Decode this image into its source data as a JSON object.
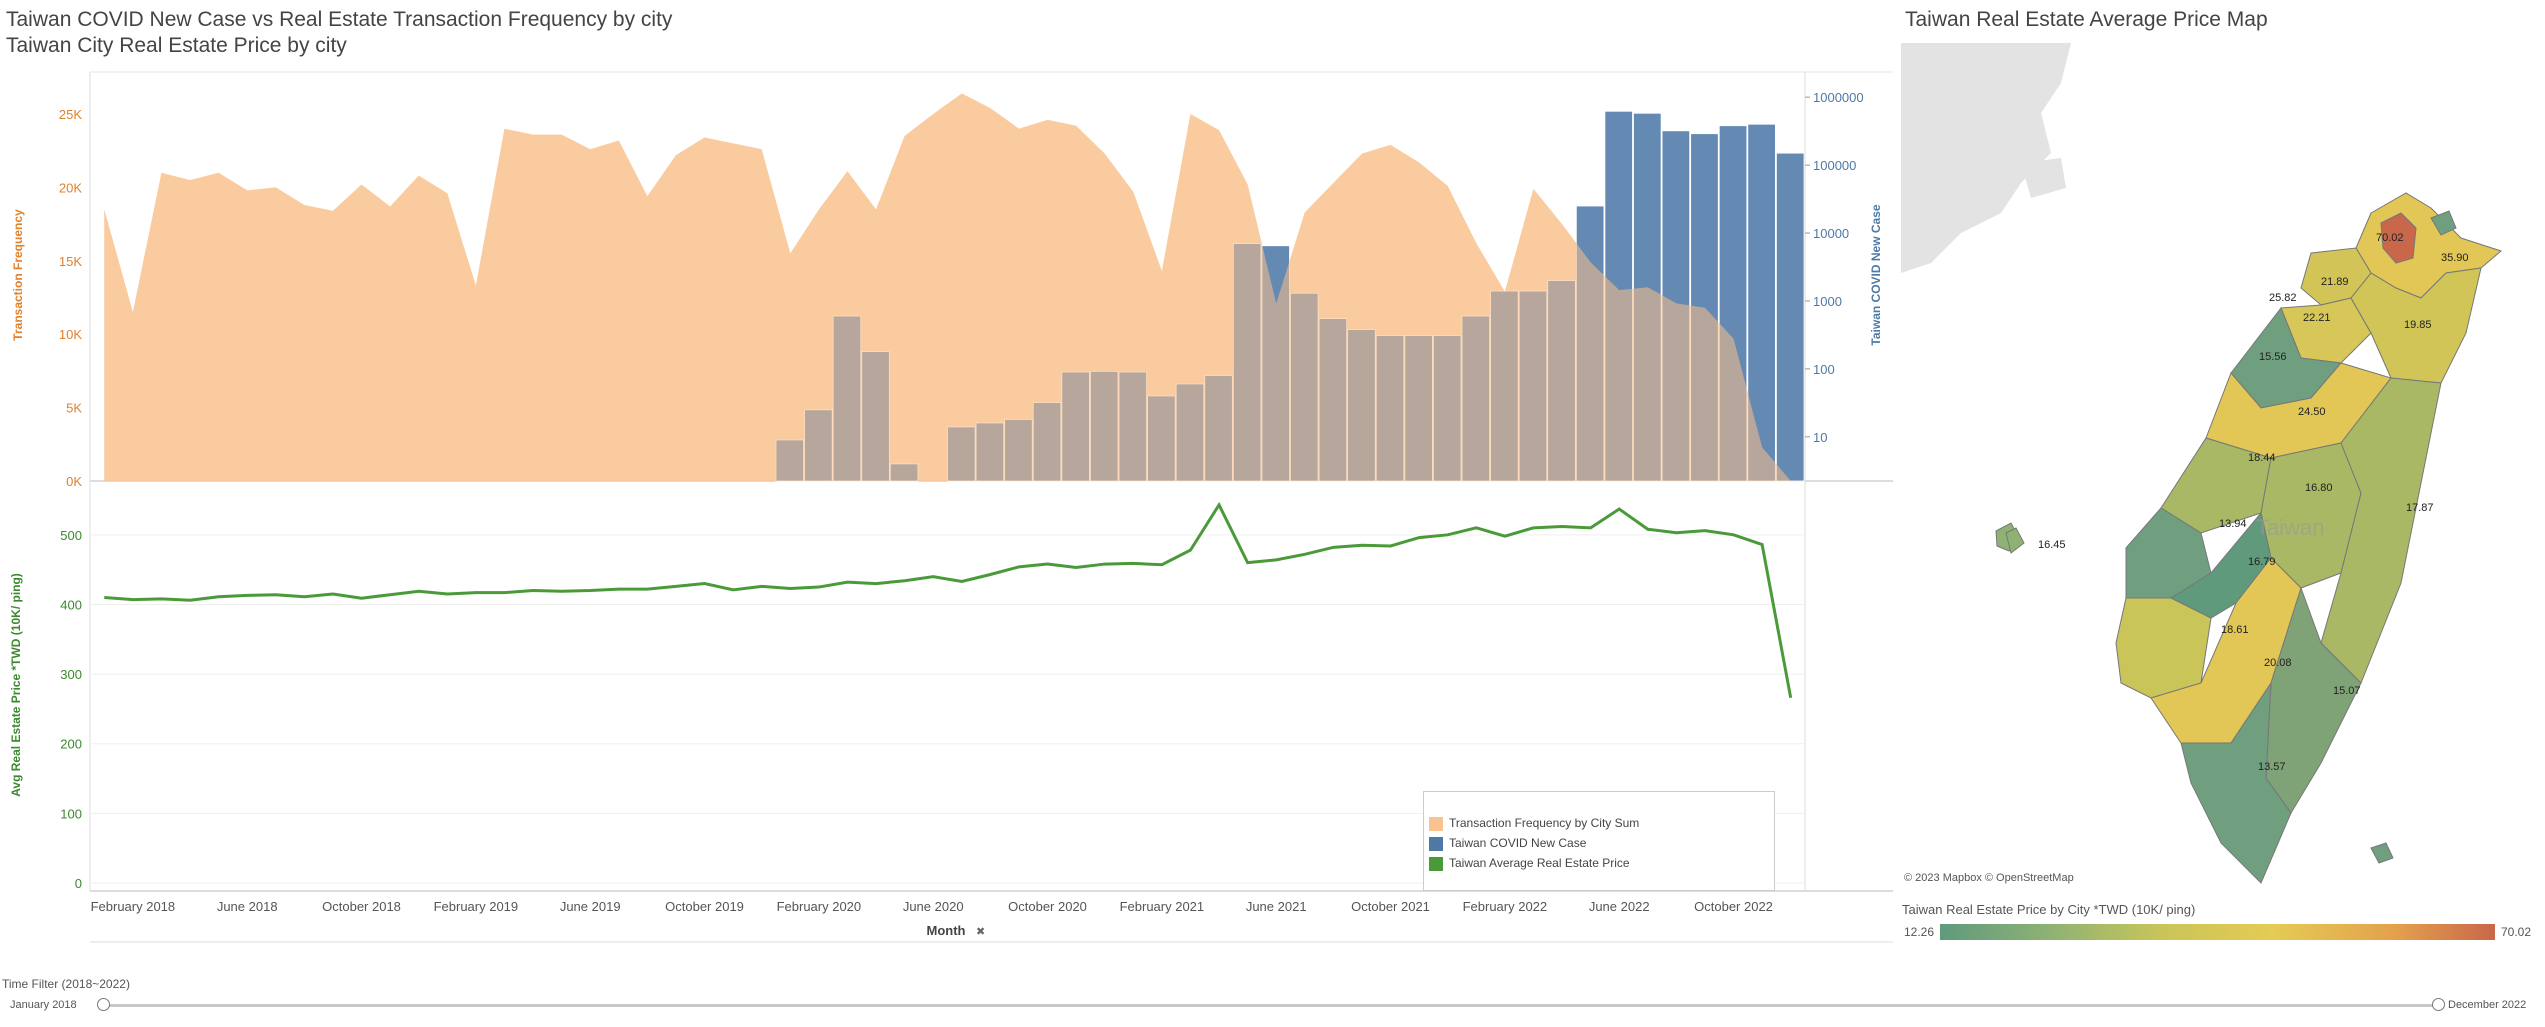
{
  "chart_titles": {
    "line1": "Taiwan COVID New Case vs Real Estate Transaction Frequency by city",
    "line2": "Taiwan City Real Estate Price by city"
  },
  "map_panel": {
    "title": "Taiwan Real Estate Average Price Map",
    "attribution": "© 2023 Mapbox © OpenStreetMap",
    "island_label": "Taiwan",
    "city_values": [
      "70.02",
      "35.90",
      "21.89",
      "25.82",
      "22.21",
      "19.85",
      "15.56",
      "24.50",
      "18.44",
      "16.80",
      "17.87",
      "13.94",
      "16.79",
      "16.45",
      "18.61",
      "20.08",
      "15.07",
      "13.57"
    ],
    "legend_title": "Taiwan Real Estate Price by City   *TWD (10K/ ping)",
    "legend_min": "12.26",
    "legend_max": "70.02"
  },
  "colors": {
    "transaction": "#f9c38f",
    "covid": "#4e79a7",
    "price": "#4a9a3a",
    "transaction_axis": "#e0812c",
    "covid_axis": "#4e79a7",
    "price_axis": "#3b8a2e"
  },
  "time_filter": {
    "label": "Time Filter (2018~2022)",
    "start": "January 2018",
    "end": "December 2022"
  },
  "legend": {
    "items": [
      {
        "label": "Transaction Frequency by City Sum",
        "color": "#f9c38f"
      },
      {
        "label": "Taiwan COVID New Case",
        "color": "#4e79a7"
      },
      {
        "label": "Taiwan Average Real Estate Price",
        "color": "#4a9a3a"
      }
    ]
  },
  "chart_data": [
    {
      "type": "area",
      "title": "Taiwan COVID New Case vs Real Estate Transaction Frequency by city",
      "xlabel": "Month",
      "ylabel": "Transaction Frequency",
      "y2label": "Taiwan COVID New Case",
      "ylim": [
        0,
        28000
      ],
      "y_ticks": [
        "0K",
        "5K",
        "10K",
        "15K",
        "20K",
        "25K"
      ],
      "y2_scale": "log",
      "y2_ticks": [
        "10",
        "100",
        "1000",
        "10000",
        "100000",
        "1000000"
      ],
      "x_ticks": [
        "February 2018",
        "June 2018",
        "October 2018",
        "February 2019",
        "June 2019",
        "October 2019",
        "February 2020",
        "June 2020",
        "October 2020",
        "February 2021",
        "June 2021",
        "October 2021",
        "February 2022",
        "June 2022",
        "October 2022"
      ],
      "months": [
        "2018-01",
        "2018-02",
        "2018-03",
        "2018-04",
        "2018-05",
        "2018-06",
        "2018-07",
        "2018-08",
        "2018-09",
        "2018-10",
        "2018-11",
        "2018-12",
        "2019-01",
        "2019-02",
        "2019-03",
        "2019-04",
        "2019-05",
        "2019-06",
        "2019-07",
        "2019-08",
        "2019-09",
        "2019-10",
        "2019-11",
        "2019-12",
        "2020-01",
        "2020-02",
        "2020-03",
        "2020-04",
        "2020-05",
        "2020-06",
        "2020-07",
        "2020-08",
        "2020-09",
        "2020-10",
        "2020-11",
        "2020-12",
        "2021-01",
        "2021-02",
        "2021-03",
        "2021-04",
        "2021-05",
        "2021-06",
        "2021-07",
        "2021-08",
        "2021-09",
        "2021-10",
        "2021-11",
        "2021-12",
        "2022-01",
        "2022-02",
        "2022-03",
        "2022-04",
        "2022-05",
        "2022-06",
        "2022-07",
        "2022-08",
        "2022-09",
        "2022-10",
        "2022-11",
        "2022-12"
      ],
      "series": [
        {
          "name": "Transaction Frequency by City Sum",
          "values": [
            18500,
            11500,
            21000,
            20500,
            21000,
            19800,
            20000,
            18800,
            18400,
            20200,
            18700,
            20800,
            19600,
            13300,
            24000,
            23600,
            23600,
            22600,
            23200,
            19400,
            22200,
            23400,
            23000,
            22600,
            15500,
            18500,
            21100,
            18500,
            23500,
            25000,
            26400,
            25400,
            24000,
            24600,
            24200,
            22300,
            19700,
            14300,
            25000,
            23900,
            20200,
            12100,
            18300,
            20300,
            22300,
            22900,
            21700,
            20100,
            16200,
            12900,
            19900,
            17500,
            14900,
            13000,
            13200,
            12100,
            11800,
            9700,
            2300,
            0
          ]
        },
        {
          "name": "Taiwan COVID New Case",
          "scale": "log",
          "values": [
            null,
            null,
            null,
            null,
            null,
            null,
            null,
            null,
            null,
            null,
            null,
            null,
            null,
            null,
            null,
            null,
            null,
            null,
            null,
            null,
            null,
            null,
            null,
            null,
            9,
            25,
            600,
            180,
            4,
            2,
            14,
            16,
            18,
            32,
            90,
            92,
            90,
            40,
            60,
            80,
            7000,
            6500,
            1300,
            550,
            380,
            310,
            310,
            310,
            600,
            1400,
            1400,
            2000,
            25000,
            620000,
            580000,
            320000,
            290000,
            380000,
            400000,
            150000
          ]
        }
      ]
    },
    {
      "type": "line",
      "title": "Taiwan City Real Estate Price by city",
      "xlabel": "Month",
      "ylabel": "Avg Real Estate Price *TWD (10K/ ping)",
      "ylim": [
        0,
        550
      ],
      "y_ticks": [
        "0",
        "100",
        "200",
        "300",
        "400",
        "500"
      ],
      "series": [
        {
          "name": "Taiwan Average Real Estate Price",
          "values": [
            410,
            407,
            408,
            406,
            411,
            413,
            414,
            411,
            415,
            409,
            414,
            419,
            415,
            417,
            417,
            420,
            419,
            420,
            422,
            422,
            426,
            430,
            421,
            426,
            423,
            425,
            432,
            430,
            434,
            440,
            433,
            443,
            454,
            458,
            453,
            458,
            459,
            457,
            478,
            543,
            460,
            464,
            472,
            482,
            485,
            484,
            496,
            500,
            510,
            498,
            510,
            512,
            510,
            537,
            508,
            503,
            506,
            500,
            486,
            266
          ]
        }
      ]
    }
  ]
}
